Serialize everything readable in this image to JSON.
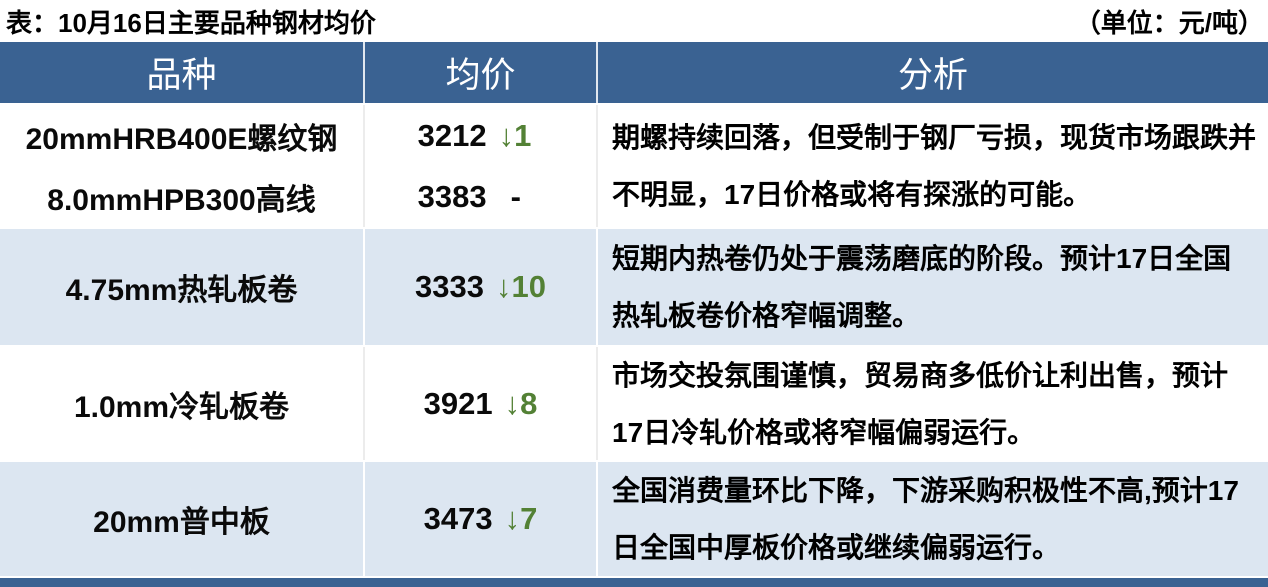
{
  "title": "表：10月16日主要品种钢材均价",
  "unit_note": "（单位：元/吨）",
  "headers": [
    "品种",
    "均价",
    "分析"
  ],
  "colors": {
    "header_bg": "#3A6292",
    "row_alt_bg": "#DCE6F1",
    "down_green": "#538135",
    "text": "#000000"
  },
  "rows": [
    {
      "products": [
        {
          "name": "20mmHRB400E螺纹钢",
          "price": "3212",
          "change_down": "↓1"
        },
        {
          "name": "8.0mmHPB300高线",
          "price": "3383",
          "change_flat": "-"
        }
      ],
      "analysis": "期螺持续回落，但受制于钢厂亏损，现货市场跟跌并不明显，17日价格或将有探涨的可能。"
    },
    {
      "products": [
        {
          "name": "4.75mm热轧板卷",
          "price": "3333",
          "change_down": "↓10"
        }
      ],
      "analysis": "短期内热卷仍处于震荡磨底的阶段。预计17日全国热轧板卷价格窄幅调整。"
    },
    {
      "products": [
        {
          "name": "1.0mm冷轧板卷",
          "price": "3921",
          "change_down": "↓8"
        }
      ],
      "analysis": "市场交投氛围谨慎，贸易商多低价让利出售，预计17日冷轧价格或将窄幅偏弱运行。"
    },
    {
      "products": [
        {
          "name": "20mm普中板",
          "price": "3473",
          "change_down": "↓7"
        }
      ],
      "analysis": "全国消费量环比下降，下游采购积极性不高,预计17日全国中厚板价格或继续偏弱运行。"
    }
  ]
}
